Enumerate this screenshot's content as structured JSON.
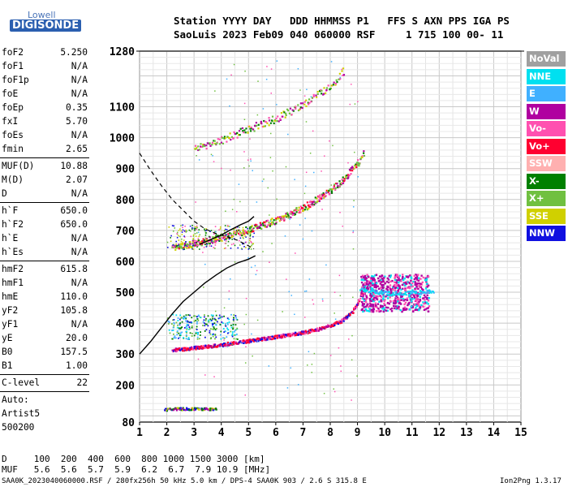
{
  "logo": {
    "line1": "Lowell",
    "line2": "DIGISONDE"
  },
  "header": {
    "line1": "Station YYYY DAY   DDD HHMMSS P1   FFS S AXN PPS IGA PS",
    "line2": "SaoLuis 2023 Feb09 040 060000 RSF     1 715 100 00- 11"
  },
  "params": {
    "group1": [
      {
        "label": "foF2",
        "value": "5.250"
      },
      {
        "label": "foF1",
        "value": "N/A"
      },
      {
        "label": "foF1p",
        "value": "N/A"
      },
      {
        "label": "foE",
        "value": "N/A"
      },
      {
        "label": "foEp",
        "value": "0.35"
      },
      {
        "label": "fxI",
        "value": "5.70"
      },
      {
        "label": "foEs",
        "value": "N/A"
      },
      {
        "label": "fmin",
        "value": "2.65"
      }
    ],
    "group2": [
      {
        "label": "MUF(D)",
        "value": "10.88"
      },
      {
        "label": "M(D)",
        "value": "2.07"
      },
      {
        "label": "D",
        "value": "N/A"
      }
    ],
    "group3": [
      {
        "label": "h`F",
        "value": "650.0"
      },
      {
        "label": "h`F2",
        "value": "650.0"
      },
      {
        "label": "h`E",
        "value": "N/A"
      },
      {
        "label": "h`Es",
        "value": "N/A"
      }
    ],
    "group4": [
      {
        "label": "hmF2",
        "value": "615.8"
      },
      {
        "label": "hmF1",
        "value": "N/A"
      },
      {
        "label": "hmE",
        "value": "110.0"
      },
      {
        "label": "yF2",
        "value": "105.8"
      },
      {
        "label": "yF1",
        "value": "N/A"
      },
      {
        "label": "yE",
        "value": "20.0"
      },
      {
        "label": "B0",
        "value": "157.5"
      },
      {
        "label": "B1",
        "value": "1.00"
      }
    ],
    "clevel": {
      "label": "C-level",
      "value": "22"
    },
    "auto": [
      "Auto:",
      "Artist5",
      "500200"
    ]
  },
  "legend": [
    {
      "label": "NoVal",
      "color": "#a0a0a0"
    },
    {
      "label": "NNE",
      "color": "#00e0f0"
    },
    {
      "label": "E",
      "color": "#40b0ff"
    },
    {
      "label": "W",
      "color": "#b000a0"
    },
    {
      "label": "Vo-",
      "color": "#ff50b0"
    },
    {
      "label": "Vo+",
      "color": "#ff0030"
    },
    {
      "label": "SSW",
      "color": "#ffb0b0"
    },
    {
      "label": "X-",
      "color": "#008000"
    },
    {
      "label": "X+",
      "color": "#70c040"
    },
    {
      "label": "SSE",
      "color": "#d0d000"
    },
    {
      "label": "NNW",
      "color": "#1010e0"
    }
  ],
  "chart_data": {
    "type": "scatter",
    "xlim": [
      1,
      15
    ],
    "ylim": [
      80,
      1280
    ],
    "xticks": [
      "1",
      "2",
      "3",
      "4",
      "5",
      "6",
      "7",
      "8",
      "9",
      "10",
      "11",
      "12",
      "13",
      "14",
      "15"
    ],
    "yticks": [
      "80",
      "200",
      "300",
      "400",
      "500",
      "600",
      "700",
      "800",
      "900",
      "1000",
      "1100",
      "1280"
    ],
    "grid": true,
    "traces": {
      "o_F": [
        [
          2.2,
          315
        ],
        [
          3,
          322
        ],
        [
          4,
          332
        ],
        [
          5,
          345
        ],
        [
          6,
          358
        ],
        [
          7,
          372
        ],
        [
          7.5,
          382
        ],
        [
          8,
          395
        ],
        [
          8.4,
          410
        ],
        [
          8.8,
          440
        ],
        [
          9.0,
          470
        ],
        [
          9.2,
          510
        ]
      ],
      "spread_F": [
        [
          9.1,
          510
        ],
        [
          9.6,
          505
        ],
        [
          10.2,
          498
        ],
        [
          10.8,
          500
        ],
        [
          11.2,
          502
        ],
        [
          11.8,
          505
        ]
      ],
      "o_F_multiple": [
        [
          2.2,
          648
        ],
        [
          3,
          660
        ],
        [
          4,
          680
        ],
        [
          5,
          705
        ],
        [
          6,
          735
        ],
        [
          7,
          775
        ],
        [
          8,
          830
        ],
        [
          8.5,
          870
        ],
        [
          9.0,
          920
        ],
        [
          9.2,
          950
        ]
      ],
      "o_F_triple": [
        [
          3,
          965
        ],
        [
          4,
          995
        ],
        [
          5,
          1030
        ],
        [
          6,
          1065
        ],
        [
          7,
          1110
        ],
        [
          8,
          1170
        ],
        [
          8.5,
          1220
        ]
      ],
      "E_layer": [
        [
          1.9,
          122
        ],
        [
          2.4,
          125
        ],
        [
          3,
          125
        ],
        [
          3.8,
          124
        ]
      ],
      "lower_cluster": [
        [
          2,
          360
        ],
        [
          2.6,
          380
        ],
        [
          3.2,
          400
        ],
        [
          3.8,
          410
        ],
        [
          4.4,
          415
        ]
      ]
    },
    "profile_solid_upper": [
      [
        3.2,
        655
      ],
      [
        3.6,
        670
      ],
      [
        4,
        685
      ],
      [
        4.3,
        700
      ],
      [
        4.7,
        718
      ],
      [
        5.0,
        730
      ],
      [
        5.2,
        745
      ]
    ],
    "profile_solid_lower": [
      [
        1.0,
        300
      ],
      [
        1.4,
        340
      ],
      [
        1.8,
        385
      ],
      [
        2.2,
        430
      ],
      [
        2.6,
        470
      ],
      [
        3,
        500
      ],
      [
        3.4,
        530
      ],
      [
        3.8,
        555
      ],
      [
        4.2,
        578
      ],
      [
        4.6,
        595
      ],
      [
        5.0,
        607
      ],
      [
        5.25,
        618
      ]
    ],
    "profile_dashed": [
      [
        1.0,
        950
      ],
      [
        1.4,
        895
      ],
      [
        1.8,
        845
      ],
      [
        2.2,
        800
      ],
      [
        2.6,
        765
      ],
      [
        3.0,
        730
      ],
      [
        3.4,
        705
      ],
      [
        3.8,
        690
      ],
      [
        4.2,
        680
      ],
      [
        4.6,
        668
      ],
      [
        5.0,
        650
      ],
      [
        5.2,
        640
      ]
    ]
  },
  "footer": {
    "d_row": "D     100  200  400  600  800 1000 1500 3000 [km]",
    "muf_row": "MUF   5.6  5.6  5.7  5.9  6.2  6.7  7.9 10.9 [MHz]",
    "bottom": "SAA0K_2023040060000.RSF / 280fx256h 50 kHz 5.0 km / DPS-4 SAA0K 903 / 2.6 S 315.8 E",
    "version": "Ion2Png 1.3.17"
  }
}
